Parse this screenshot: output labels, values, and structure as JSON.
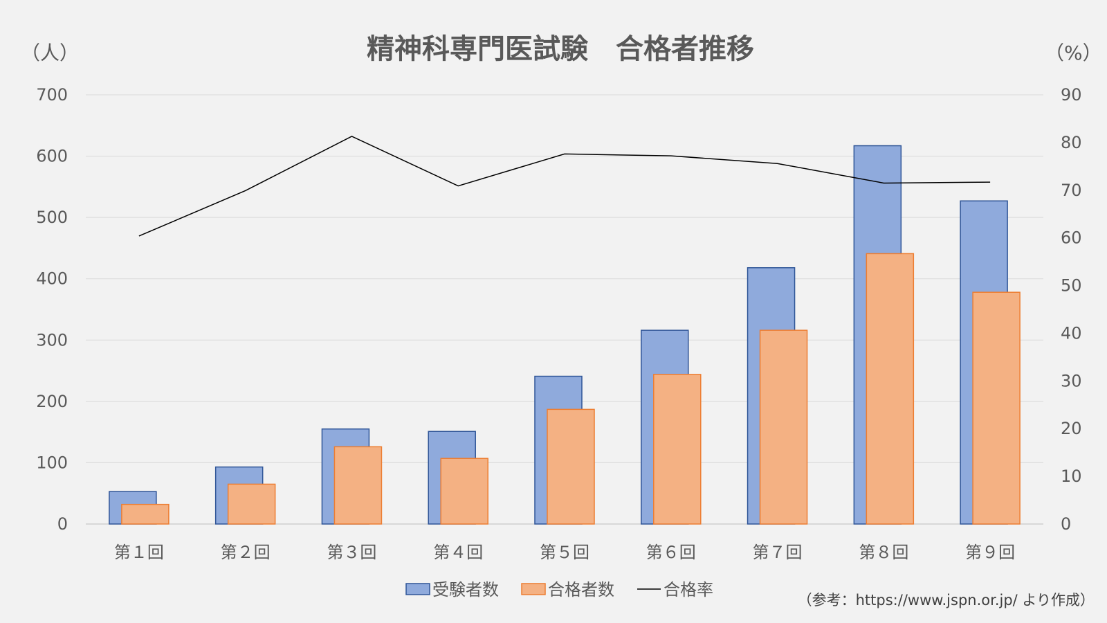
{
  "chart_data": {
    "type": "bar",
    "title": "精神科専門医試験　合格者推移",
    "left_unit": "（人）",
    "right_unit": "（%）",
    "categories": [
      "第１回",
      "第２回",
      "第３回",
      "第４回",
      "第５回",
      "第６回",
      "第７回",
      "第８回",
      "第９回"
    ],
    "series": [
      {
        "name": "受験者数",
        "kind": "bar",
        "axis": "left",
        "fill": "#8faadc",
        "stroke": "#2f5597",
        "values": [
          53,
          93,
          155,
          151,
          241,
          316,
          418,
          617,
          527
        ]
      },
      {
        "name": "合格者数",
        "kind": "bar",
        "axis": "left",
        "fill": "#f4b183",
        "stroke": "#ed7d31",
        "values": [
          32,
          65,
          126,
          107,
          187,
          244,
          316,
          441,
          378
        ]
      },
      {
        "name": "合格率",
        "kind": "line",
        "axis": "right",
        "stroke": "#000000",
        "values": [
          60.4,
          69.9,
          81.3,
          70.9,
          77.6,
          77.2,
          75.6,
          71.5,
          71.7
        ]
      }
    ],
    "ylim_left": [
      0,
      700
    ],
    "yticks_left": [
      0,
      100,
      200,
      300,
      400,
      500,
      600,
      700
    ],
    "ylim_right": [
      0,
      90
    ],
    "yticks_right": [
      0,
      10,
      20,
      30,
      40,
      50,
      60,
      70,
      80,
      90
    ],
    "grid": true,
    "legend_position": "bottom",
    "source_note": "（参考：https://www.jspn.or.jp/ より作成）"
  }
}
